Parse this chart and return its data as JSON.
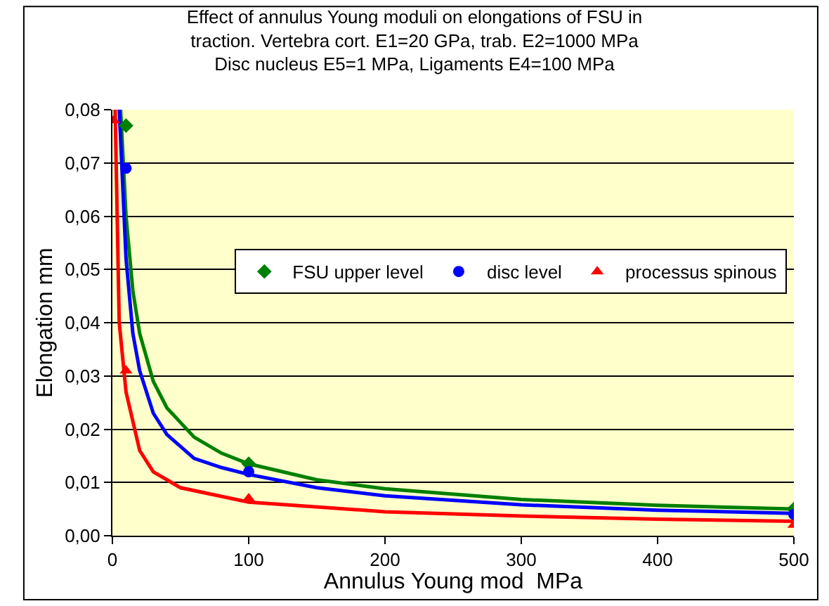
{
  "chart_data": {
    "type": "scatter",
    "title": "Effect of annulus Young moduli on elongations of FSU in\ntraction. Vertebra cort. E1=20 GPa, trab. E2=1000 MPa\nDisc nucleus E5=1 MPa, Ligaments E4=100 MPa",
    "xlabel": "Annulus Young mod  MPa",
    "ylabel": "Elongation mm",
    "xlim": [
      0,
      500
    ],
    "xticks": [
      0,
      100,
      200,
      300,
      400,
      500
    ],
    "ylim": [
      0,
      0.08
    ],
    "yticks": [
      {
        "value": 0,
        "label": "0,00"
      },
      {
        "value": 0.01,
        "label": "0,01"
      },
      {
        "value": 0.02,
        "label": "0,02"
      },
      {
        "value": 0.03,
        "label": "0,03"
      },
      {
        "value": 0.04,
        "label": "0,04"
      },
      {
        "value": 0.05,
        "label": "0,05"
      },
      {
        "value": 0.06,
        "label": "0,06"
      },
      {
        "value": 0.07,
        "label": "0,07"
      },
      {
        "value": 0.08,
        "label": "0,08"
      }
    ],
    "grid": "y",
    "legend": "right",
    "series": [
      {
        "name": "FSU upper level",
        "marker": "diamond",
        "color": "#008000",
        "x": [
          10,
          100,
          500
        ],
        "values": [
          0.077,
          0.0135,
          0.005
        ]
      },
      {
        "name": "disc level",
        "marker": "circle",
        "color": "#0000ff",
        "x": [
          10,
          100,
          500
        ],
        "values": [
          0.069,
          0.012,
          0.004
        ]
      },
      {
        "name": "processus spinous",
        "marker": "triangle",
        "color": "#ff0000",
        "x": [
          1,
          10,
          100,
          500
        ],
        "values": [
          0.078,
          0.031,
          0.007,
          0.002
        ]
      },
      {
        "type": "line",
        "color": "#008000",
        "x": [
          6,
          10,
          15,
          20,
          30,
          40,
          60,
          80,
          100,
          150,
          200,
          300,
          400,
          500
        ],
        "values": [
          0.08,
          0.06,
          0.046,
          0.038,
          0.029,
          0.024,
          0.0185,
          0.0155,
          0.0135,
          0.0105,
          0.0088,
          0.0068,
          0.0057,
          0.005
        ]
      },
      {
        "type": "line",
        "color": "#0000ff",
        "x": [
          5,
          10,
          15,
          20,
          30,
          40,
          60,
          80,
          100,
          150,
          200,
          300,
          400,
          500
        ],
        "values": [
          0.08,
          0.052,
          0.038,
          0.031,
          0.023,
          0.019,
          0.0145,
          0.0128,
          0.0115,
          0.009,
          0.0075,
          0.0058,
          0.0048,
          0.0042
        ]
      },
      {
        "type": "line",
        "color": "#ff0000",
        "x": [
          2,
          5,
          10,
          20,
          30,
          50,
          100,
          200,
          300,
          400,
          500
        ],
        "values": [
          0.08,
          0.04,
          0.027,
          0.016,
          0.012,
          0.009,
          0.0063,
          0.0045,
          0.0037,
          0.0031,
          0.0027
        ]
      }
    ]
  }
}
